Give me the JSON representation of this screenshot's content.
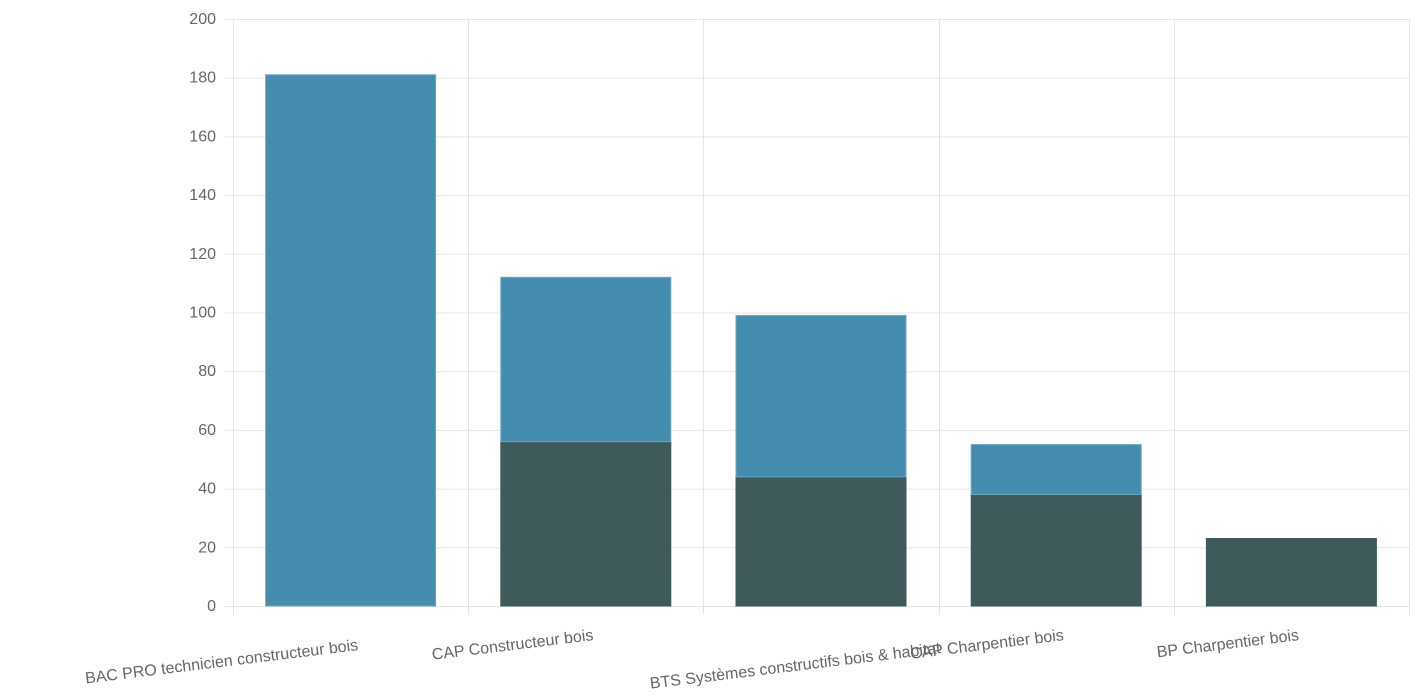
{
  "chart_data": {
    "type": "bar",
    "stacked": true,
    "categories": [
      "BAC PRO technicien constructeur bois",
      "CAP Constructeur bois",
      "BTS Systèmes constructifs bois & habitat",
      "CAP Charpentier bois",
      "BP Charpentier bois"
    ],
    "series": [
      {
        "values": [
          0,
          56,
          44,
          38,
          23
        ],
        "color": "#3f5a5b"
      },
      {
        "values": [
          181,
          56,
          55,
          17,
          0
        ],
        "color": "#448dae"
      }
    ],
    "ylim": [
      0,
      200
    ],
    "yticks": [
      "0",
      "20",
      "40",
      "60",
      "80",
      "100",
      "120",
      "140",
      "160",
      "180",
      "200"
    ],
    "title": "",
    "xlabel": "",
    "ylabel": "",
    "grid": true,
    "legend": "none",
    "colors": {
      "grid": "#e5e5e5",
      "text": "#666666"
    }
  }
}
